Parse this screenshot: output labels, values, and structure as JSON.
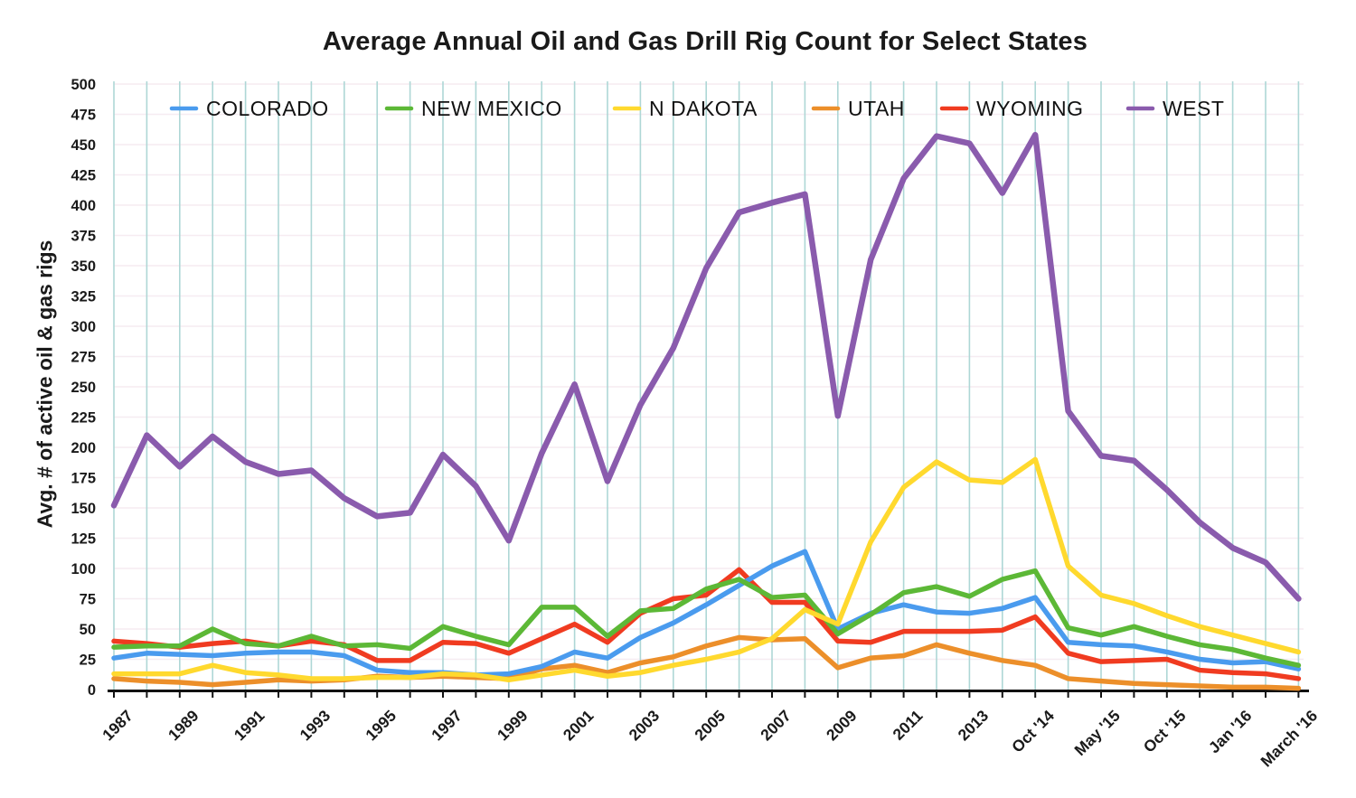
{
  "title": "Average Annual Oil and Gas Drill Rig Count for Select States",
  "y_axis_title": "Avg. # of active oil & gas rigs",
  "colors": {
    "vertical_gridline": "#aed7d6",
    "horizontal_gridline": "#f6ecf1",
    "axis": "#111111",
    "text": "#1a1a1a"
  },
  "chart_data": {
    "type": "line",
    "title": "Average Annual Oil and Gas Drill Rig Count for Select States",
    "ylabel": "Avg. # of active oil & gas rigs",
    "ylim": [
      0,
      500
    ],
    "y_step": 25,
    "legend_position": "top",
    "grid": {
      "vertical": true,
      "horizontal": true
    },
    "categories": [
      "1987",
      "1988",
      "1989",
      "1990",
      "1991",
      "1992",
      "1993",
      "1994",
      "1995",
      "1996",
      "1997",
      "1998",
      "1999",
      "2000",
      "2001",
      "2002",
      "2003",
      "2004",
      "2005",
      "2006",
      "2007",
      "2008",
      "2009",
      "2010",
      "2011",
      "2012",
      "2013",
      "",
      "Oct '14",
      "",
      "May '15",
      "",
      "Oct '15",
      "",
      "Jan '16",
      "",
      "March '16"
    ],
    "x_ticks": [
      {
        "index": 0,
        "label": "1987"
      },
      {
        "index": 2,
        "label": "1989"
      },
      {
        "index": 4,
        "label": "1991"
      },
      {
        "index": 6,
        "label": "1993"
      },
      {
        "index": 8,
        "label": "1995"
      },
      {
        "index": 10,
        "label": "1997"
      },
      {
        "index": 12,
        "label": "1999"
      },
      {
        "index": 14,
        "label": "2001"
      },
      {
        "index": 16,
        "label": "2003"
      },
      {
        "index": 18,
        "label": "2005"
      },
      {
        "index": 20,
        "label": "2007"
      },
      {
        "index": 22,
        "label": "2009"
      },
      {
        "index": 24,
        "label": "2011"
      },
      {
        "index": 26,
        "label": "2013"
      },
      {
        "index": 28,
        "label": "Oct '14"
      },
      {
        "index": 30,
        "label": "May '15"
      },
      {
        "index": 32,
        "label": "Oct '15"
      },
      {
        "index": 34,
        "label": "Jan '16"
      },
      {
        "index": 36,
        "label": "March '16"
      }
    ],
    "series": [
      {
        "name": "COLORADO",
        "color": "#4a9bee",
        "values": [
          26,
          30,
          29,
          28,
          30,
          31,
          31,
          28,
          16,
          14,
          14,
          12,
          13,
          19,
          31,
          26,
          43,
          55,
          70,
          86,
          102,
          114,
          50,
          63,
          70,
          64,
          63,
          67,
          76,
          39,
          37,
          36,
          31,
          25,
          22,
          23,
          17
        ]
      },
      {
        "name": "NEW MEXICO",
        "color": "#5cb836",
        "values": [
          35,
          36,
          36,
          50,
          38,
          36,
          44,
          36,
          37,
          34,
          52,
          44,
          37,
          68,
          68,
          44,
          65,
          67,
          83,
          91,
          76,
          78,
          46,
          62,
          80,
          85,
          77,
          91,
          98,
          51,
          45,
          52,
          44,
          37,
          33,
          26,
          20
        ]
      },
      {
        "name": "N DAKOTA",
        "color": "#ffd92e",
        "values": [
          13,
          13,
          13,
          20,
          14,
          12,
          9,
          9,
          10,
          10,
          13,
          12,
          8,
          12,
          16,
          11,
          14,
          20,
          25,
          31,
          42,
          66,
          54,
          122,
          167,
          188,
          173,
          171,
          190,
          102,
          78,
          71,
          61,
          52,
          45,
          38,
          31
        ]
      },
      {
        "name": "UTAH",
        "color": "#ec8f2a",
        "values": [
          9,
          7,
          6,
          4,
          6,
          8,
          7,
          8,
          11,
          10,
          11,
          10,
          9,
          17,
          20,
          14,
          22,
          27,
          36,
          43,
          41,
          42,
          18,
          26,
          28,
          37,
          30,
          24,
          20,
          9,
          7,
          5,
          4,
          3,
          2,
          2,
          1
        ]
      },
      {
        "name": "WYOMING",
        "color": "#f03b20",
        "values": [
          40,
          38,
          35,
          38,
          40,
          36,
          40,
          37,
          24,
          24,
          39,
          38,
          30,
          42,
          54,
          39,
          63,
          75,
          78,
          99,
          72,
          72,
          40,
          39,
          48,
          48,
          48,
          49,
          60,
          30,
          23,
          24,
          25,
          16,
          14,
          13,
          9
        ]
      },
      {
        "name": "WEST",
        "color": "#8a5bad",
        "values": [
          152,
          210,
          184,
          209,
          188,
          178,
          181,
          158,
          143,
          146,
          194,
          168,
          123,
          195,
          252,
          172,
          235,
          282,
          348,
          394,
          402,
          409,
          226,
          355,
          422,
          457,
          451,
          410,
          458,
          230,
          193,
          189,
          165,
          138,
          117,
          105,
          75
        ]
      }
    ]
  }
}
